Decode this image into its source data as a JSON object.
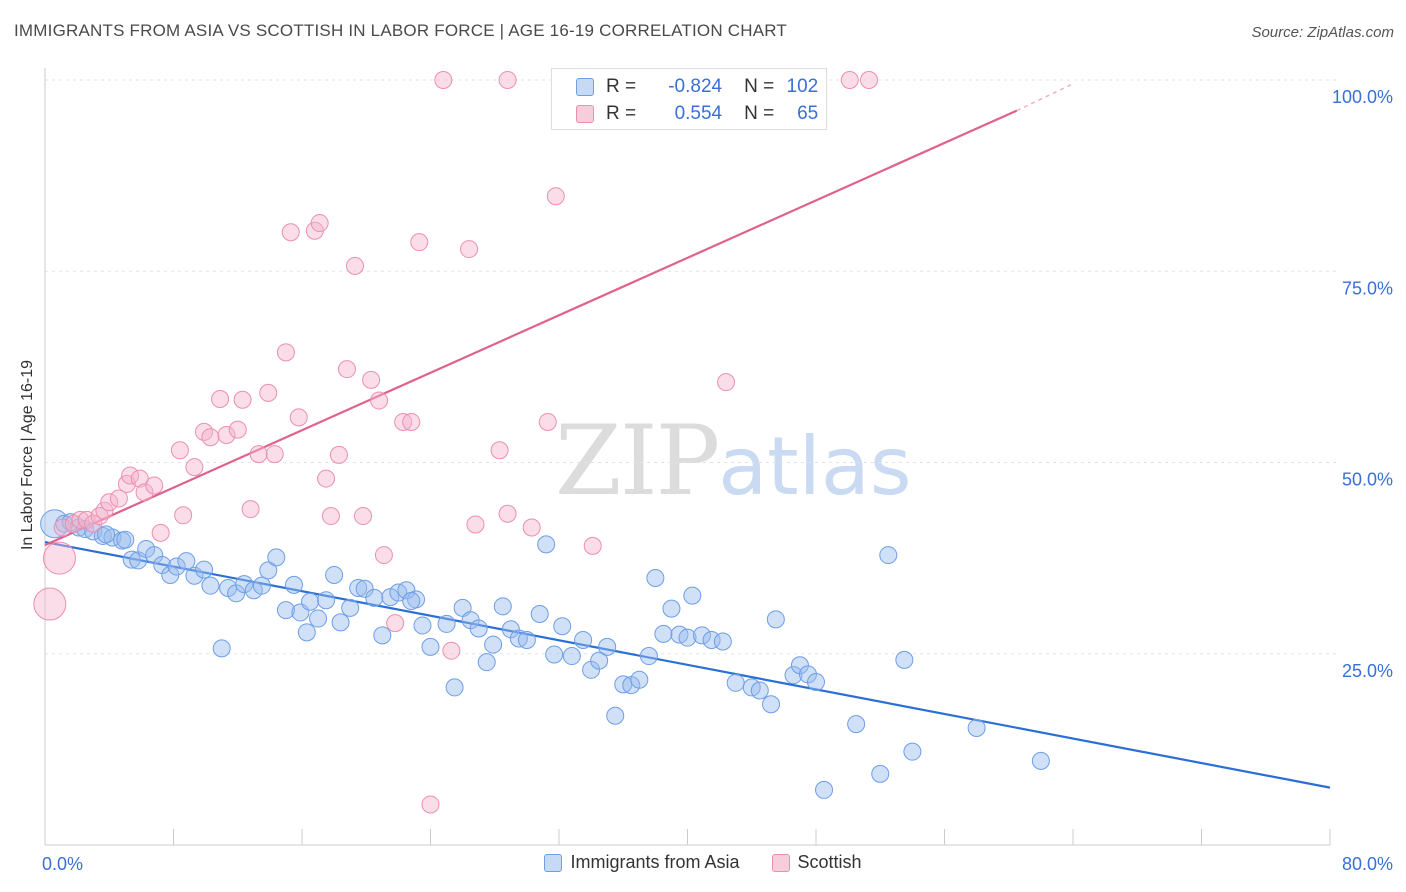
{
  "header": {
    "title": "IMMIGRANTS FROM ASIA VS SCOTTISH IN LABOR FORCE | AGE 16-19 CORRELATION CHART",
    "source": "Source: ZipAtlas.com"
  },
  "watermark": {
    "zip": "ZIP",
    "atlas": "atlas"
  },
  "stats": {
    "rows": [
      {
        "r_label": "R =",
        "r_value": "-0.824",
        "n_label": "N =",
        "n_value": "102",
        "color": "#6d9ee8"
      },
      {
        "r_label": "R =",
        "r_value": "0.554",
        "n_label": "N =",
        "n_value": "65",
        "color": "#ec8fae"
      }
    ]
  },
  "legend": {
    "items": [
      {
        "label": "Immigrants from Asia",
        "color": "#6d9ee8"
      },
      {
        "label": "Scottish",
        "color": "#ec8fae"
      }
    ]
  },
  "chart_data": {
    "type": "scatter",
    "xlabel": "",
    "ylabel": "In Labor Force | Age 16-19",
    "xlim": [
      0,
      80
    ],
    "ylim": [
      0,
      100
    ],
    "x_tick_labels": [
      "0.0%",
      "80.0%"
    ],
    "y_tick_values": [
      25,
      50,
      75,
      100
    ],
    "y_tick_labels": [
      "25.0%",
      "50.0%",
      "75.0%",
      "100.0%"
    ],
    "grid": true,
    "series": [
      {
        "name": "Immigrants from Asia",
        "color": "#6d9ee8",
        "line_color": "#2a6fd6",
        "trend": {
          "x": [
            0,
            80
          ],
          "y": [
            39.6,
            7.5
          ]
        },
        "points": [
          [
            0.6,
            42.0
          ],
          [
            1.2,
            42.0
          ],
          [
            1.6,
            42.2
          ],
          [
            2.1,
            41.5
          ],
          [
            2.5,
            41.3
          ],
          [
            3.0,
            41.0
          ],
          [
            3.6,
            40.4
          ],
          [
            4.2,
            40.2
          ],
          [
            4.8,
            39.8
          ],
          [
            5.4,
            37.3
          ],
          [
            5.8,
            37.2
          ],
          [
            6.3,
            38.7
          ],
          [
            6.8,
            37.9
          ],
          [
            7.3,
            36.6
          ],
          [
            7.8,
            35.3
          ],
          [
            8.2,
            36.4
          ],
          [
            8.8,
            37.1
          ],
          [
            9.3,
            35.2
          ],
          [
            9.9,
            36.0
          ],
          [
            10.3,
            33.9
          ],
          [
            11.0,
            25.7
          ],
          [
            11.4,
            33.6
          ],
          [
            11.9,
            32.9
          ],
          [
            12.4,
            34.1
          ],
          [
            13.0,
            33.3
          ],
          [
            13.5,
            33.9
          ],
          [
            13.9,
            35.9
          ],
          [
            14.4,
            37.6
          ],
          [
            15.0,
            30.7
          ],
          [
            15.5,
            34.0
          ],
          [
            15.9,
            30.4
          ],
          [
            16.5,
            31.8
          ],
          [
            17.0,
            29.6
          ],
          [
            17.5,
            32.0
          ],
          [
            18.0,
            35.3
          ],
          [
            18.4,
            29.1
          ],
          [
            19.0,
            31.0
          ],
          [
            19.5,
            33.6
          ],
          [
            19.9,
            33.5
          ],
          [
            20.5,
            32.3
          ],
          [
            21.0,
            27.4
          ],
          [
            21.5,
            32.4
          ],
          [
            22.0,
            33.0
          ],
          [
            22.5,
            33.3
          ],
          [
            23.1,
            32.1
          ],
          [
            23.5,
            28.7
          ],
          [
            24.0,
            25.9
          ],
          [
            25.0,
            28.9
          ],
          [
            25.5,
            20.6
          ],
          [
            26.0,
            31.0
          ],
          [
            26.5,
            29.4
          ],
          [
            27.0,
            28.3
          ],
          [
            27.5,
            23.9
          ],
          [
            27.9,
            26.2
          ],
          [
            28.5,
            31.2
          ],
          [
            29.0,
            28.2
          ],
          [
            29.5,
            27.0
          ],
          [
            30.0,
            26.8
          ],
          [
            30.8,
            30.2
          ],
          [
            31.2,
            39.3
          ],
          [
            31.7,
            24.9
          ],
          [
            32.2,
            28.6
          ],
          [
            32.8,
            24.7
          ],
          [
            33.5,
            26.8
          ],
          [
            34.0,
            22.9
          ],
          [
            34.5,
            24.1
          ],
          [
            35.0,
            25.9
          ],
          [
            35.5,
            16.9
          ],
          [
            36.0,
            21.0
          ],
          [
            36.5,
            20.9
          ],
          [
            37.0,
            21.6
          ],
          [
            37.6,
            24.7
          ],
          [
            38.0,
            34.9
          ],
          [
            38.5,
            27.6
          ],
          [
            39.0,
            30.9
          ],
          [
            39.5,
            27.5
          ],
          [
            40.0,
            27.1
          ],
          [
            40.3,
            32.6
          ],
          [
            40.9,
            27.4
          ],
          [
            41.5,
            26.8
          ],
          [
            42.2,
            26.6
          ],
          [
            43.0,
            21.2
          ],
          [
            44.0,
            20.6
          ],
          [
            44.5,
            20.2
          ],
          [
            45.2,
            18.4
          ],
          [
            45.5,
            29.5
          ],
          [
            46.6,
            22.2
          ],
          [
            47.0,
            23.5
          ],
          [
            47.5,
            22.3
          ],
          [
            48.0,
            21.3
          ],
          [
            48.5,
            7.2
          ],
          [
            50.5,
            15.8
          ],
          [
            52.0,
            9.3
          ],
          [
            52.5,
            37.9
          ],
          [
            53.5,
            24.2
          ],
          [
            54.0,
            12.2
          ],
          [
            58.0,
            15.3
          ],
          [
            62.0,
            11.0
          ],
          [
            3.8,
            40.6
          ],
          [
            5.0,
            39.9
          ],
          [
            16.3,
            27.8
          ],
          [
            22.8,
            31.9
          ]
        ],
        "radii": {
          "0": 14
        }
      },
      {
        "name": "Scottish",
        "color": "#ec8fae",
        "line_color": "#e0608e",
        "trend": {
          "x": [
            0,
            60.5
          ],
          "y": [
            39.2,
            96.0
          ]
        },
        "trend_dashed": {
          "x": [
            60.5,
            64
          ],
          "y": [
            96.0,
            99.5
          ]
        },
        "points": [
          [
            0.3,
            31.5
          ],
          [
            0.9,
            37.5
          ],
          [
            1.1,
            41.5
          ],
          [
            1.8,
            42.0
          ],
          [
            2.2,
            42.5
          ],
          [
            2.6,
            42.5
          ],
          [
            3.0,
            42.0
          ],
          [
            3.4,
            43.0
          ],
          [
            3.7,
            43.7
          ],
          [
            4.0,
            44.8
          ],
          [
            4.6,
            45.3
          ],
          [
            5.1,
            47.2
          ],
          [
            5.3,
            48.3
          ],
          [
            5.9,
            47.9
          ],
          [
            6.2,
            46.1
          ],
          [
            6.8,
            47.0
          ],
          [
            7.2,
            40.8
          ],
          [
            8.4,
            51.6
          ],
          [
            8.6,
            43.1
          ],
          [
            9.3,
            49.4
          ],
          [
            9.9,
            54.0
          ],
          [
            10.3,
            53.3
          ],
          [
            10.9,
            58.3
          ],
          [
            11.3,
            53.6
          ],
          [
            12.0,
            54.3
          ],
          [
            12.3,
            58.2
          ],
          [
            12.8,
            43.9
          ],
          [
            13.3,
            51.1
          ],
          [
            13.9,
            59.1
          ],
          [
            14.3,
            51.1
          ],
          [
            15.0,
            64.4
          ],
          [
            15.3,
            80.1
          ],
          [
            15.8,
            55.9
          ],
          [
            16.8,
            80.3
          ],
          [
            17.1,
            81.3
          ],
          [
            17.5,
            47.9
          ],
          [
            17.8,
            43.0
          ],
          [
            18.3,
            51.0
          ],
          [
            18.8,
            62.2
          ],
          [
            19.3,
            75.7
          ],
          [
            19.8,
            43.0
          ],
          [
            20.3,
            60.8
          ],
          [
            20.8,
            58.1
          ],
          [
            21.1,
            37.9
          ],
          [
            21.8,
            29.0
          ],
          [
            22.3,
            55.3
          ],
          [
            22.8,
            55.3
          ],
          [
            23.3,
            78.8
          ],
          [
            24.8,
            100.0
          ],
          [
            25.3,
            25.4
          ],
          [
            26.4,
            77.9
          ],
          [
            26.8,
            41.9
          ],
          [
            28.3,
            51.6
          ],
          [
            28.8,
            43.3
          ],
          [
            28.8,
            100.0
          ],
          [
            30.3,
            41.5
          ],
          [
            31.3,
            55.3
          ],
          [
            31.8,
            84.8
          ],
          [
            34.1,
            39.1
          ],
          [
            38.3,
            100.0
          ],
          [
            42.4,
            60.5
          ],
          [
            47.3,
            100.0
          ],
          [
            50.1,
            100.0
          ],
          [
            51.3,
            100.0
          ],
          [
            24.0,
            5.3
          ]
        ],
        "radii": {
          "0": 16,
          "1": 16
        }
      }
    ]
  }
}
